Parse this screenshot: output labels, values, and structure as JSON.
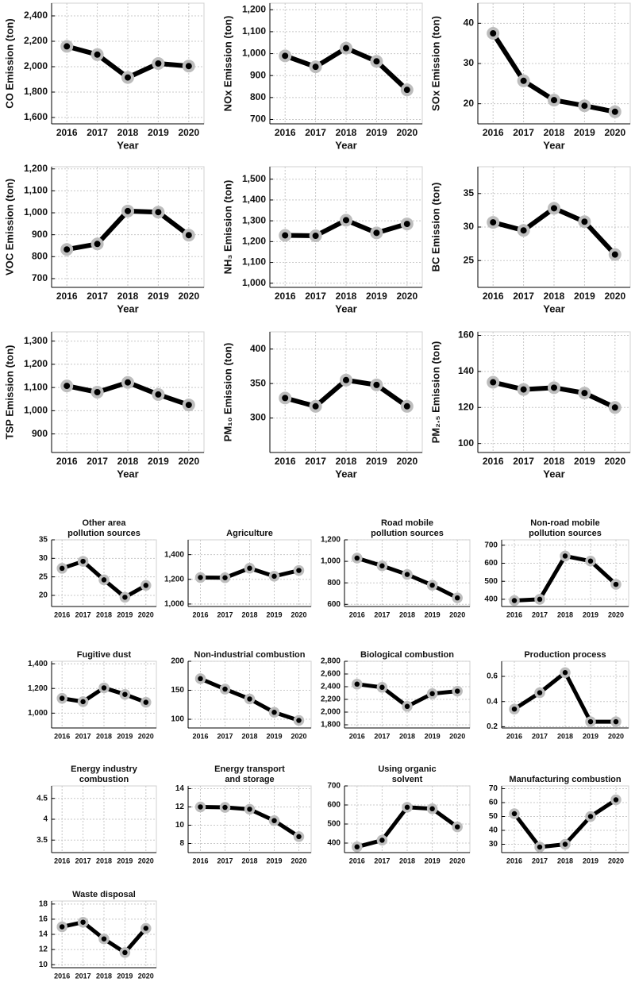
{
  "chart_data": [
    {
      "type": "line",
      "ylabel": "CO Emission (ton)",
      "xlabel": "Year",
      "categories": [
        "2016",
        "2017",
        "2018",
        "2019",
        "2020"
      ],
      "values": [
        2160,
        2095,
        1915,
        2025,
        2005
      ],
      "ylim": [
        1550,
        2500
      ],
      "yticks": [
        {
          "value": 1600,
          "label": "1,600"
        },
        {
          "value": 1800,
          "label": "1,800"
        },
        {
          "value": 2000,
          "label": "2,000"
        },
        {
          "value": 2200,
          "label": "2,200"
        },
        {
          "value": 2400,
          "label": "2,400"
        }
      ],
      "grid": true,
      "color": "#000000",
      "marker_color": "#bdbdbd"
    },
    {
      "type": "line",
      "ylabel": "NOx Emission (ton)",
      "xlabel": "Year",
      "categories": [
        "2016",
        "2017",
        "2018",
        "2019",
        "2020"
      ],
      "values": [
        990,
        940,
        1025,
        965,
        835
      ],
      "ylim": [
        680,
        1230
      ],
      "yticks": [
        700,
        800,
        900,
        {
          "value": 1000,
          "label": "1,000"
        },
        {
          "value": 1100,
          "label": "1,100"
        },
        {
          "value": 1200,
          "label": "1,200"
        }
      ],
      "grid": true,
      "color": "#000000",
      "marker_color": "#bdbdbd"
    },
    {
      "type": "line",
      "ylabel": "SOx Emission (ton)",
      "xlabel": "Year",
      "categories": [
        "2016",
        "2017",
        "2018",
        "2019",
        "2020"
      ],
      "values": [
        37.5,
        25.7,
        20.9,
        19.5,
        18.0
      ],
      "ylim": [
        15,
        45
      ],
      "yticks": [
        20,
        30,
        40
      ],
      "grid": true,
      "color": "#000000",
      "marker_color": "#bdbdbd"
    },
    {
      "type": "line",
      "ylabel": "VOC Emission (ton)",
      "xlabel": "Year",
      "categories": [
        "2016",
        "2017",
        "2018",
        "2019",
        "2020"
      ],
      "values": [
        833,
        858,
        1008,
        1003,
        898
      ],
      "ylim": [
        660,
        1210
      ],
      "yticks": [
        700,
        800,
        900,
        {
          "value": 1000,
          "label": "1,000"
        },
        {
          "value": 1100,
          "label": "1,100"
        },
        {
          "value": 1200,
          "label": "1,200"
        }
      ],
      "grid": true,
      "color": "#000000",
      "marker_color": "#bdbdbd"
    },
    {
      "type": "line",
      "ylabel": "NH₃ Emission (ton)",
      "xlabel": "Year",
      "categories": [
        "2016",
        "2017",
        "2018",
        "2019",
        "2020"
      ],
      "values": [
        1230,
        1228,
        1303,
        1242,
        1285
      ],
      "ylim": [
        980,
        1560
      ],
      "yticks": [
        {
          "value": 1000,
          "label": "1,000"
        },
        {
          "value": 1100,
          "label": "1,100"
        },
        {
          "value": 1200,
          "label": "1,200"
        },
        {
          "value": 1300,
          "label": "1,300"
        },
        {
          "value": 1400,
          "label": "1,400"
        },
        {
          "value": 1500,
          "label": "1,500"
        }
      ],
      "grid": true,
      "color": "#000000",
      "marker_color": "#bdbdbd"
    },
    {
      "type": "line",
      "ylabel": "BC Emission (ton)",
      "xlabel": "Year",
      "categories": [
        "2016",
        "2017",
        "2018",
        "2019",
        "2020"
      ],
      "values": [
        30.7,
        29.5,
        32.8,
        30.8,
        25.9
      ],
      "ylim": [
        21,
        39
      ],
      "yticks": [
        25,
        30,
        35
      ],
      "grid": true,
      "color": "#000000",
      "marker_color": "#bdbdbd"
    },
    {
      "type": "line",
      "ylabel": "TSP Emission (ton)",
      "xlabel": "Year",
      "categories": [
        "2016",
        "2017",
        "2018",
        "2019",
        "2020"
      ],
      "values": [
        1107,
        1080,
        1122,
        1070,
        1025
      ],
      "ylim": [
        820,
        1340
      ],
      "yticks": [
        900,
        {
          "value": 1000,
          "label": "1,000"
        },
        {
          "value": 1100,
          "label": "1,100"
        },
        {
          "value": 1200,
          "label": "1,200"
        },
        {
          "value": 1300,
          "label": "1,300"
        }
      ],
      "grid": true,
      "color": "#000000",
      "marker_color": "#bdbdbd"
    },
    {
      "type": "line",
      "ylabel": "PM₁₀ Emission (ton)",
      "xlabel": "Year",
      "categories": [
        "2016",
        "2017",
        "2018",
        "2019",
        "2020"
      ],
      "values": [
        329,
        317,
        355,
        348,
        317
      ],
      "ylim": [
        250,
        425
      ],
      "yticks": [
        300,
        350,
        400
      ],
      "grid": true,
      "color": "#000000",
      "marker_color": "#bdbdbd"
    },
    {
      "type": "line",
      "ylabel": "PM₂.₅ Emission (ton)",
      "xlabel": "Year",
      "categories": [
        "2016",
        "2017",
        "2018",
        "2019",
        "2020"
      ],
      "values": [
        134,
        130,
        131,
        128,
        120
      ],
      "ylim": [
        95,
        162
      ],
      "yticks": [
        100,
        120,
        140,
        160
      ],
      "grid": true,
      "color": "#000000",
      "marker_color": "#bdbdbd"
    },
    {
      "type": "line",
      "title": [
        "Other area",
        "pollution sources"
      ],
      "categories": [
        "2016",
        "2017",
        "2018",
        "2019",
        "2020"
      ],
      "values": [
        27.3,
        29.2,
        24.2,
        19.5,
        22.7
      ],
      "ylim": [
        17,
        35
      ],
      "yticks": [
        20,
        25,
        30,
        35
      ],
      "grid": true,
      "color": "#000000",
      "marker_color": "#bdbdbd"
    },
    {
      "type": "line",
      "title": [
        "Agriculture"
      ],
      "categories": [
        "2016",
        "2017",
        "2018",
        "2019",
        "2020"
      ],
      "values": [
        1215,
        1213,
        1290,
        1225,
        1272
      ],
      "ylim": [
        980,
        1520
      ],
      "yticks": [
        {
          "value": 1000,
          "label": "1,000"
        },
        {
          "value": 1200,
          "label": "1,200"
        },
        {
          "value": 1400,
          "label": "1,400"
        }
      ],
      "grid": true,
      "color": "#000000",
      "marker_color": "#bdbdbd"
    },
    {
      "type": "line",
      "title": [
        "Road mobile",
        "pollution sources"
      ],
      "categories": [
        "2016",
        "2017",
        "2018",
        "2019",
        "2020"
      ],
      "values": [
        1030,
        958,
        878,
        778,
        660
      ],
      "ylim": [
        580,
        1200
      ],
      "yticks": [
        600,
        800,
        {
          "value": 1000,
          "label": "1,000"
        },
        {
          "value": 1200,
          "label": "1,200"
        }
      ],
      "grid": true,
      "color": "#000000",
      "marker_color": "#bdbdbd"
    },
    {
      "type": "line",
      "title": [
        "Non-road mobile",
        "pollution sources"
      ],
      "categories": [
        "2016",
        "2017",
        "2018",
        "2019",
        "2020"
      ],
      "values": [
        393,
        400,
        640,
        612,
        483
      ],
      "ylim": [
        360,
        730
      ],
      "yticks": [
        400,
        500,
        600,
        700
      ],
      "grid": true,
      "color": "#000000",
      "marker_color": "#bdbdbd"
    },
    {
      "type": "line",
      "title": [
        "Fugitive dust"
      ],
      "categories": [
        "2016",
        "2017",
        "2018",
        "2019",
        "2020"
      ],
      "values": [
        1120,
        1093,
        1205,
        1152,
        1088
      ],
      "ylim": [
        880,
        1420
      ],
      "yticks": [
        {
          "value": 1000,
          "label": "1,000"
        },
        {
          "value": 1200,
          "label": "1,200"
        },
        {
          "value": 1400,
          "label": "1,400"
        }
      ],
      "grid": true,
      "color": "#000000",
      "marker_color": "#bdbdbd"
    },
    {
      "type": "line",
      "title": [
        "Non-industrial combustion"
      ],
      "categories": [
        "2016",
        "2017",
        "2018",
        "2019",
        "2020"
      ],
      "values": [
        170,
        152,
        135,
        112,
        98
      ],
      "ylim": [
        85,
        200
      ],
      "yticks": [
        100,
        150,
        200
      ],
      "grid": true,
      "color": "#000000",
      "marker_color": "#bdbdbd"
    },
    {
      "type": "line",
      "title": [
        "Biological combustion"
      ],
      "categories": [
        "2016",
        "2017",
        "2018",
        "2019",
        "2020"
      ],
      "values": [
        2440,
        2390,
        2090,
        2290,
        2330
      ],
      "ylim": [
        1750,
        2800
      ],
      "yticks": [
        {
          "value": 1800,
          "label": "1,800"
        },
        {
          "value": 2000,
          "label": "2,000"
        },
        {
          "value": 2200,
          "label": "2,200"
        },
        {
          "value": 2400,
          "label": "2,400"
        },
        {
          "value": 2600,
          "label": "2,600"
        },
        {
          "value": 2800,
          "label": "2,800"
        }
      ],
      "grid": true,
      "color": "#000000",
      "marker_color": "#bdbdbd"
    },
    {
      "type": "line",
      "title": [
        "Production process"
      ],
      "categories": [
        "2016",
        "2017",
        "2018",
        "2019",
        "2020"
      ],
      "values": [
        0.34,
        0.47,
        0.63,
        0.24,
        0.24
      ],
      "ylim": [
        0.19,
        0.72
      ],
      "yticks": [
        0.2,
        0.4,
        0.6
      ],
      "grid": true,
      "color": "#000000",
      "marker_color": "#bdbdbd"
    },
    {
      "type": "line",
      "title": [
        "Energy industry",
        "combustion"
      ],
      "categories": [
        "2016",
        "2017",
        "2018",
        "2019",
        "2020"
      ],
      "values": [
        null,
        null,
        null,
        null,
        null
      ],
      "ylim": [
        3.2,
        4.8
      ],
      "yticks": [
        3.5,
        4,
        4.5
      ],
      "grid": true,
      "color": "#000000",
      "marker_color": "#bdbdbd"
    },
    {
      "type": "line",
      "title": [
        "Energy transport",
        "and storage"
      ],
      "categories": [
        "2016",
        "2017",
        "2018",
        "2019",
        "2020"
      ],
      "values": [
        12.0,
        11.95,
        11.75,
        10.5,
        8.75
      ],
      "ylim": [
        7,
        14.3
      ],
      "yticks": [
        8,
        10,
        12,
        14
      ],
      "grid": true,
      "color": "#000000",
      "marker_color": "#bdbdbd"
    },
    {
      "type": "line",
      "title": [
        "Using organic",
        "solvent"
      ],
      "categories": [
        "2016",
        "2017",
        "2018",
        "2019",
        "2020"
      ],
      "values": [
        380,
        415,
        588,
        580,
        485
      ],
      "ylim": [
        350,
        700
      ],
      "yticks": [
        400,
        500,
        600,
        700
      ],
      "grid": true,
      "color": "#000000",
      "marker_color": "#bdbdbd"
    },
    {
      "type": "line",
      "title": [
        "Manufacturing combustion"
      ],
      "categories": [
        "2016",
        "2017",
        "2018",
        "2019",
        "2020"
      ],
      "values": [
        52,
        28,
        30,
        50,
        62
      ],
      "ylim": [
        24,
        72
      ],
      "yticks": [
        30,
        40,
        50,
        60,
        70
      ],
      "grid": true,
      "color": "#000000",
      "marker_color": "#bdbdbd"
    },
    {
      "type": "line",
      "title": [
        "Waste disposal"
      ],
      "categories": [
        "2016",
        "2017",
        "2018",
        "2019",
        "2020"
      ],
      "values": [
        15.0,
        15.6,
        13.4,
        11.6,
        14.8
      ],
      "ylim": [
        9.6,
        18.4
      ],
      "yticks": [
        10,
        12,
        14,
        16,
        18
      ],
      "grid": true,
      "color": "#000000",
      "marker_color": "#bdbdbd"
    }
  ]
}
